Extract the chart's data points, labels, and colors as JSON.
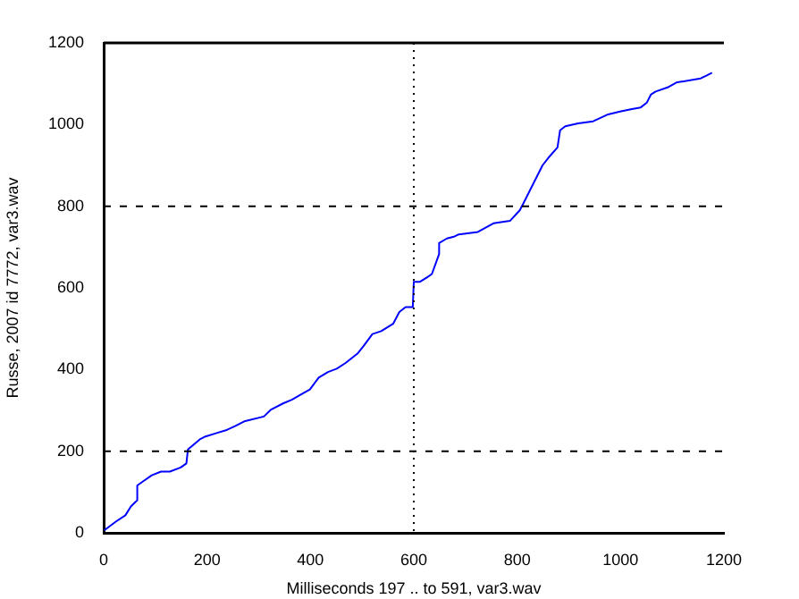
{
  "chart_data": {
    "type": "line",
    "xlabel": "Milliseconds 197 .. to 591, var3.wav",
    "ylabel": "Russe, 2007 id 7772, var3.wav",
    "xlim": [
      0,
      1200
    ],
    "ylim": [
      0,
      1200
    ],
    "xticks": [
      0,
      200,
      400,
      600,
      800,
      1000,
      1200
    ],
    "yticks": [
      0,
      200,
      400,
      600,
      800,
      1000,
      1200
    ],
    "grid": false,
    "legend": false,
    "marker": "none",
    "line_style": "solid",
    "ref_lines": [
      {
        "axis": "y",
        "value": 200,
        "line_style": "dashed"
      },
      {
        "axis": "y",
        "value": 800,
        "line_style": "dashed"
      },
      {
        "axis": "x",
        "value": 600,
        "line_style": "dotted"
      }
    ],
    "series": [
      {
        "color": "#0000ff",
        "x": [
          1,
          24,
          42,
          53,
          65,
          65,
          76,
          93,
          111,
          128,
          149,
          160,
          163,
          186,
          197,
          220,
          238,
          255,
          272,
          310,
          324,
          347,
          364,
          382,
          399,
          407,
          416,
          434,
          451,
          468,
          491,
          503,
          520,
          537,
          560,
          572,
          584,
          598,
          600,
          612,
          626,
          635,
          649,
          649,
          664,
          679,
          687,
          724,
          754,
          786,
          805,
          812,
          849,
          860,
          878,
          883,
          893,
          918,
          947,
          976,
          999,
          1022,
          1039,
          1051,
          1059,
          1068,
          1091,
          1108,
          1155,
          1166,
          1177
        ],
        "values": [
          6,
          28,
          43,
          65,
          80,
          116,
          126,
          141,
          150,
          150,
          160,
          170,
          204,
          229,
          236,
          245,
          252,
          262,
          273,
          285,
          302,
          317,
          326,
          339,
          351,
          365,
          380,
          394,
          402,
          416,
          439,
          458,
          487,
          494,
          512,
          541,
          553,
          553,
          615,
          615,
          626,
          634,
          683,
          710,
          721,
          726,
          731,
          737,
          758,
          764,
          790,
          807,
          900,
          918,
          944,
          986,
          996,
          1003,
          1008,
          1025,
          1032,
          1038,
          1042,
          1054,
          1074,
          1081,
          1091,
          1103,
          1113,
          1120,
          1127
        ]
      }
    ]
  }
}
